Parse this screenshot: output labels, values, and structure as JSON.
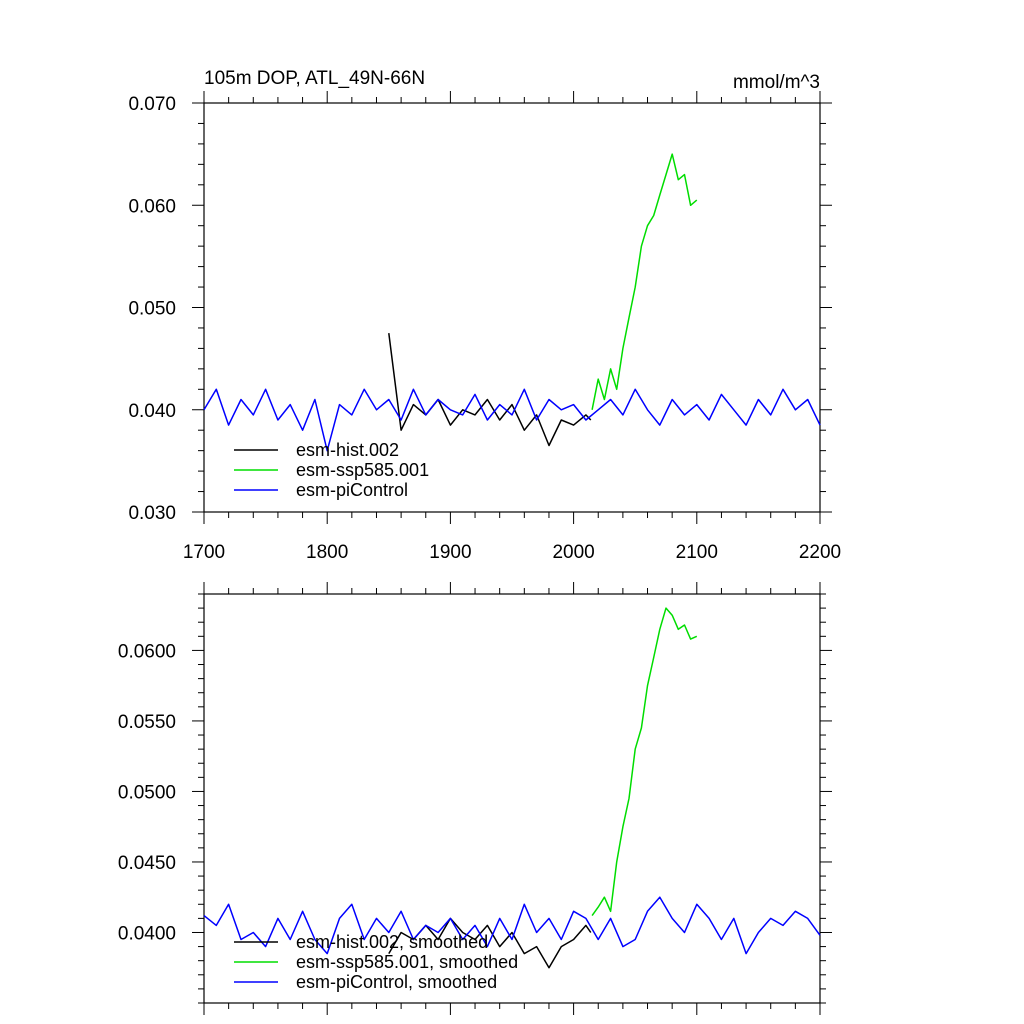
{
  "chart_data": [
    {
      "type": "line",
      "title": "105m DOP, ATL_49N-66N",
      "units": "mmol/m^3",
      "xlim": [
        1700,
        2200
      ],
      "ylim": [
        0.03,
        0.07
      ],
      "xticks": [
        1700,
        1800,
        1900,
        2000,
        2100,
        2200
      ],
      "xtick_labels": [
        "1700",
        "1800",
        "1900",
        "2000",
        "2100",
        "2200"
      ],
      "yticks": [
        0.03,
        0.04,
        0.05,
        0.06,
        0.07
      ],
      "ytick_labels": [
        "0.030",
        "0.040",
        "0.050",
        "0.060",
        "0.070"
      ],
      "legend_position": "bottom-left",
      "series": [
        {
          "name": "esm-hist.002",
          "color": "#000000",
          "x": [
            1850,
            1860,
            1870,
            1880,
            1890,
            1900,
            1910,
            1920,
            1930,
            1940,
            1950,
            1960,
            1970,
            1980,
            1990,
            2000,
            2010,
            2014
          ],
          "y": [
            0.0475,
            0.038,
            0.0405,
            0.0395,
            0.041,
            0.0385,
            0.04,
            0.0395,
            0.041,
            0.039,
            0.0405,
            0.038,
            0.0395,
            0.0365,
            0.039,
            0.0385,
            0.0395,
            0.039
          ]
        },
        {
          "name": "esm-ssp585.001",
          "color": "#00dd00",
          "x": [
            2015,
            2020,
            2025,
            2030,
            2035,
            2040,
            2045,
            2050,
            2055,
            2060,
            2065,
            2070,
            2075,
            2080,
            2085,
            2090,
            2095,
            2100
          ],
          "y": [
            0.04,
            0.043,
            0.041,
            0.044,
            0.042,
            0.046,
            0.049,
            0.052,
            0.056,
            0.058,
            0.059,
            0.061,
            0.063,
            0.065,
            0.0625,
            0.063,
            0.06,
            0.0605
          ]
        },
        {
          "name": "esm-piControl",
          "color": "#0000ff",
          "x": [
            1700,
            1710,
            1720,
            1730,
            1740,
            1750,
            1760,
            1770,
            1780,
            1790,
            1800,
            1810,
            1820,
            1830,
            1840,
            1850,
            1860,
            1870,
            1880,
            1890,
            1900,
            1910,
            1920,
            1930,
            1940,
            1950,
            1960,
            1970,
            1980,
            1990,
            2000,
            2010,
            2020,
            2030,
            2040,
            2050,
            2060,
            2070,
            2080,
            2090,
            2100,
            2110,
            2120,
            2130,
            2140,
            2150,
            2160,
            2170,
            2180,
            2190,
            2200
          ],
          "y": [
            0.04,
            0.042,
            0.0385,
            0.041,
            0.0395,
            0.042,
            0.039,
            0.0405,
            0.038,
            0.041,
            0.036,
            0.0405,
            0.0395,
            0.042,
            0.04,
            0.041,
            0.039,
            0.042,
            0.0395,
            0.041,
            0.04,
            0.0395,
            0.0415,
            0.039,
            0.0405,
            0.0395,
            0.042,
            0.039,
            0.041,
            0.04,
            0.0405,
            0.039,
            0.04,
            0.041,
            0.0395,
            0.042,
            0.04,
            0.0385,
            0.041,
            0.0395,
            0.0405,
            0.039,
            0.0415,
            0.04,
            0.0385,
            0.041,
            0.0395,
            0.042,
            0.04,
            0.041,
            0.0385
          ]
        }
      ]
    },
    {
      "type": "line",
      "title": "",
      "xlim": [
        1700,
        2200
      ],
      "ylim": [
        0.035,
        0.064
      ],
      "yticks": [
        0.04,
        0.045,
        0.05,
        0.055,
        0.06
      ],
      "ytick_labels": [
        "0.0400",
        "0.0450",
        "0.0500",
        "0.0550",
        "0.0600"
      ],
      "legend_position": "bottom-left",
      "series": [
        {
          "name": "esm-hist.002, smoothed",
          "color": "#000000",
          "x": [
            1850,
            1860,
            1870,
            1880,
            1890,
            1900,
            1910,
            1920,
            1930,
            1940,
            1950,
            1960,
            1970,
            1980,
            1990,
            2000,
            2010,
            2014
          ],
          "y": [
            0.0385,
            0.04,
            0.0395,
            0.0405,
            0.0395,
            0.041,
            0.04,
            0.0395,
            0.0405,
            0.039,
            0.04,
            0.0385,
            0.039,
            0.0375,
            0.039,
            0.0395,
            0.0405,
            0.04
          ]
        },
        {
          "name": "esm-ssp585.001, smoothed",
          "color": "#00dd00",
          "x": [
            2015,
            2020,
            2025,
            2030,
            2035,
            2040,
            2045,
            2050,
            2055,
            2060,
            2065,
            2070,
            2075,
            2080,
            2085,
            2090,
            2095,
            2100
          ],
          "y": [
            0.0412,
            0.0418,
            0.0425,
            0.0415,
            0.045,
            0.0475,
            0.0495,
            0.053,
            0.0545,
            0.0575,
            0.0595,
            0.0615,
            0.063,
            0.0625,
            0.0615,
            0.0618,
            0.0608,
            0.061
          ]
        },
        {
          "name": "esm-piControl, smoothed",
          "color": "#0000ff",
          "x": [
            1700,
            1710,
            1720,
            1730,
            1740,
            1750,
            1760,
            1770,
            1780,
            1790,
            1800,
            1810,
            1820,
            1830,
            1840,
            1850,
            1860,
            1870,
            1880,
            1890,
            1900,
            1910,
            1920,
            1930,
            1940,
            1950,
            1960,
            1970,
            1980,
            1990,
            2000,
            2010,
            2020,
            2030,
            2040,
            2050,
            2060,
            2070,
            2080,
            2090,
            2100,
            2110,
            2120,
            2130,
            2140,
            2150,
            2160,
            2170,
            2180,
            2190,
            2200
          ],
          "y": [
            0.0412,
            0.0405,
            0.042,
            0.0395,
            0.04,
            0.039,
            0.041,
            0.0395,
            0.0415,
            0.0395,
            0.0385,
            0.041,
            0.042,
            0.0395,
            0.041,
            0.04,
            0.0415,
            0.0395,
            0.0405,
            0.04,
            0.041,
            0.0395,
            0.0405,
            0.039,
            0.041,
            0.0395,
            0.042,
            0.04,
            0.041,
            0.0395,
            0.0415,
            0.041,
            0.0395,
            0.041,
            0.039,
            0.0395,
            0.0415,
            0.0425,
            0.041,
            0.04,
            0.042,
            0.041,
            0.0395,
            0.041,
            0.0385,
            0.04,
            0.041,
            0.0405,
            0.0415,
            0.041,
            0.0398
          ]
        }
      ]
    }
  ]
}
